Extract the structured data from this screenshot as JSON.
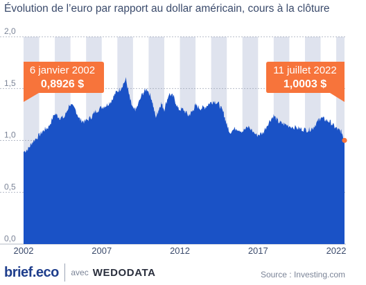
{
  "title": "Évolution de l’euro par rapport au dollar américain, cours à la clôture",
  "brand": "brief.eco",
  "avec": "avec",
  "partner": "WEDODATA",
  "source": "Source : Investing.com",
  "colors": {
    "area": "#1a52c6",
    "band": "#dfe3ee",
    "callout": "#f7743b",
    "grid": "#9aa1b2",
    "axis_text": "#7b8497",
    "end_dot": "#f7743b"
  },
  "chart_data": {
    "type": "area",
    "title": "Évolution de l’euro par rapport au dollar américain, cours à la clôture",
    "xlabel": "",
    "ylabel": "",
    "xlim": [
      2002.0,
      2022.53
    ],
    "ylim": [
      0,
      2.0
    ],
    "yticks": [
      "0,0",
      "0,5",
      "1,0",
      "1,5",
      "2,0"
    ],
    "xticks": [
      {
        "label": "2002",
        "x": 2002.0
      },
      {
        "label": "2007",
        "x": 2007.0
      },
      {
        "label": "2012",
        "x": 2012.0
      },
      {
        "label": "2017",
        "x": 2017.0
      },
      {
        "label": "2022",
        "x": 2022.0
      }
    ],
    "grid": true,
    "series": [
      {
        "x": [
          2002.0,
          2002.3,
          2002.6,
          2003.0,
          2003.3,
          2003.6,
          2004.0,
          2004.3,
          2004.6,
          2004.95,
          2005.3,
          2005.6,
          2005.9,
          2006.3,
          2006.6,
          2007.0,
          2007.3,
          2007.6,
          2007.9,
          2008.2,
          2008.55,
          2008.8,
          2009.0,
          2009.2,
          2009.6,
          2009.9,
          2010.2,
          2010.45,
          2010.6,
          2010.8,
          2011.0,
          2011.3,
          2011.6,
          2011.9,
          2012.2,
          2012.55,
          2012.8,
          2013.0,
          2013.3,
          2013.6,
          2013.9,
          2014.2,
          2014.5,
          2014.8,
          2015.0,
          2015.2,
          2015.6,
          2016.0,
          2016.4,
          2016.9,
          2017.3,
          2017.7,
          2018.0,
          2018.3,
          2018.6,
          2019.0,
          2019.5,
          2019.8,
          2020.2,
          2020.5,
          2020.8,
          2021.0,
          2021.3,
          2021.6,
          2021.9,
          2022.15,
          2022.35,
          2022.53
        ],
        "y": [
          0.89,
          0.92,
          0.99,
          1.05,
          1.1,
          1.13,
          1.26,
          1.22,
          1.22,
          1.35,
          1.3,
          1.2,
          1.18,
          1.22,
          1.28,
          1.32,
          1.34,
          1.38,
          1.46,
          1.5,
          1.59,
          1.4,
          1.3,
          1.3,
          1.45,
          1.5,
          1.4,
          1.22,
          1.28,
          1.36,
          1.3,
          1.45,
          1.42,
          1.3,
          1.3,
          1.24,
          1.28,
          1.34,
          1.31,
          1.32,
          1.36,
          1.38,
          1.35,
          1.26,
          1.15,
          1.08,
          1.12,
          1.09,
          1.13,
          1.05,
          1.07,
          1.18,
          1.24,
          1.18,
          1.16,
          1.14,
          1.12,
          1.11,
          1.1,
          1.12,
          1.18,
          1.22,
          1.2,
          1.18,
          1.13,
          1.1,
          1.08,
          1.0003
        ]
      }
    ],
    "annotations": [
      {
        "date": "6 janvier 2002",
        "value": "0,8926 $"
      },
      {
        "date": "11 juillet 2022",
        "value": "1,0003 $"
      }
    ]
  }
}
